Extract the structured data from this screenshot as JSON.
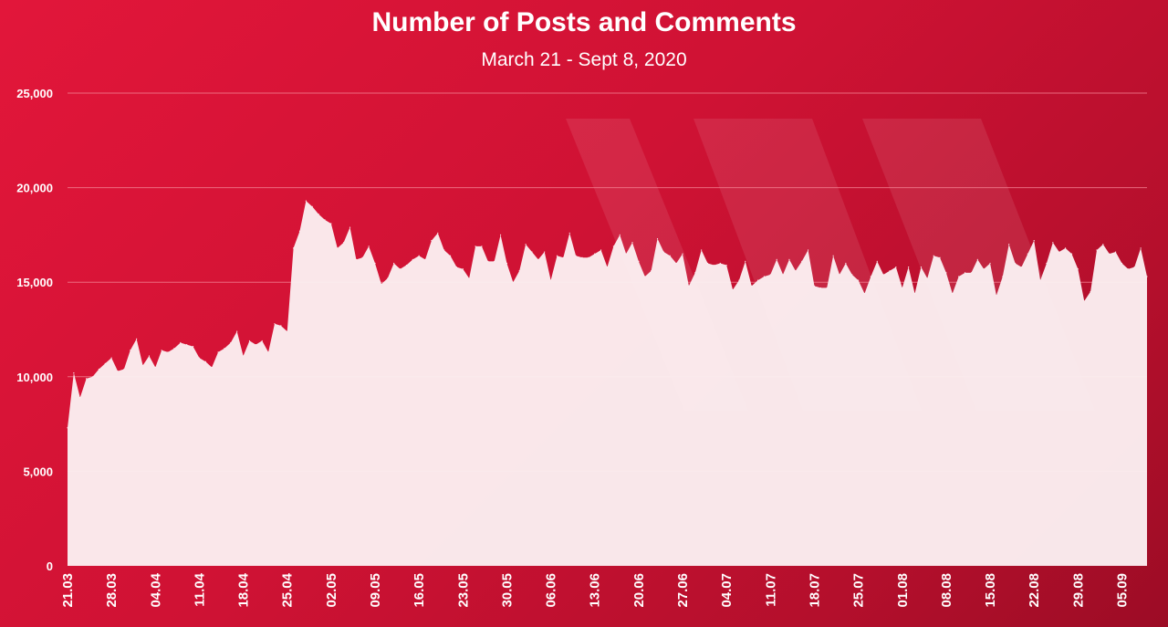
{
  "chart_data": {
    "type": "area",
    "title": "Number of Posts and Comments",
    "subtitle": "March 21 - Sept 8, 2020",
    "xlabel": "",
    "ylabel": "",
    "ylim": [
      0,
      25000
    ],
    "grid": true,
    "legend": "none",
    "colors": {
      "background": "#d4143a",
      "fill": "#fbeef1",
      "grid": "#f07a8c",
      "text": "#ffffff"
    },
    "y_ticks": [
      "0",
      "5,000",
      "10,000",
      "15,000",
      "20,000",
      "25,000"
    ],
    "y_tick_values": [
      0,
      5000,
      10000,
      15000,
      20000,
      25000
    ],
    "x_ticks": [
      "21.03",
      "28.03",
      "04.04",
      "11.04",
      "18.04",
      "25.04",
      "02.05",
      "09.05",
      "16.05",
      "23.05",
      "30.05",
      "06.06",
      "13.06",
      "20.06",
      "27.06",
      "04.07",
      "11.07",
      "18.07",
      "25.07",
      "01.08",
      "08.08",
      "15.08",
      "22.08",
      "29.08",
      "05.09"
    ],
    "x_tick_index": [
      0,
      7,
      14,
      21,
      28,
      35,
      42,
      49,
      56,
      63,
      70,
      77,
      84,
      91,
      98,
      105,
      112,
      119,
      126,
      133,
      140,
      147,
      154,
      161,
      168
    ],
    "x_range": [
      "21.03",
      "08.09"
    ],
    "series": [
      {
        "name": "",
        "values": [
          7300,
          10200,
          8900,
          9900,
          10000,
          10400,
          10700,
          11000,
          10300,
          10400,
          11400,
          12000,
          10600,
          11100,
          10500,
          11400,
          11300,
          11500,
          11800,
          11700,
          11600,
          11000,
          10800,
          10500,
          11300,
          11500,
          11800,
          12400,
          11100,
          11900,
          11700,
          11900,
          11300,
          12800,
          12700,
          12400,
          16800,
          17700,
          19300,
          19000,
          18600,
          18300,
          18100,
          16800,
          17100,
          17900,
          16200,
          16300,
          16900,
          16000,
          14900,
          15200,
          16000,
          15700,
          15900,
          16200,
          16400,
          16200,
          17200,
          17600,
          16700,
          16400,
          15800,
          15700,
          15200,
          16900,
          16900,
          16100,
          16100,
          17500,
          16000,
          15000,
          15600,
          17000,
          16600,
          16200,
          16600,
          15100,
          16400,
          16300,
          17600,
          16400,
          16300,
          16300,
          16500,
          16700,
          15800,
          16900,
          17500,
          16500,
          17100,
          16100,
          15300,
          15600,
          17300,
          16600,
          16400,
          16000,
          16500,
          14800,
          15500,
          16700,
          16000,
          15900,
          16000,
          15900,
          14600,
          15100,
          16100,
          14800,
          15100,
          15300,
          15400,
          16200,
          15400,
          16200,
          15600,
          16100,
          16700,
          14800,
          14700,
          14700,
          16400,
          15400,
          16000,
          15400,
          15100,
          14400,
          15300,
          16100,
          15400,
          15600,
          15800,
          14700,
          15800,
          14400,
          15800,
          15200,
          16400,
          16300,
          15500,
          14400,
          15300,
          15500,
          15500,
          16200,
          15700,
          16000,
          14300,
          15300,
          17000,
          16000,
          15800,
          16500,
          17200,
          15100,
          16000,
          17100,
          16600,
          16800,
          16500,
          15700,
          14000,
          14500,
          16700,
          17000,
          16500,
          16600,
          16000,
          15700,
          15800,
          16800,
          15300
        ]
      }
    ]
  }
}
